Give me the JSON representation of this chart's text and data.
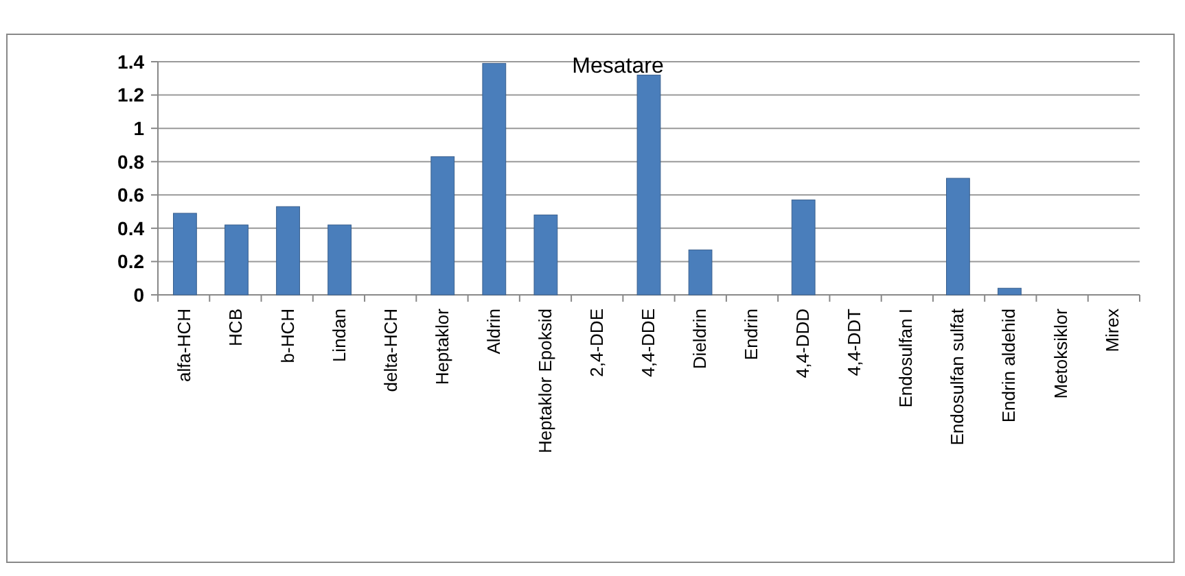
{
  "chart_data": {
    "type": "bar",
    "title": "Mesatare",
    "categories": [
      "alfa-HCH",
      "HCB",
      "b-HCH",
      "Lindan",
      "delta-HCH",
      "Heptaklor",
      "Aldrin",
      "Heptaklor Epoksid",
      "2,4-DDE",
      "4,4-DDE",
      "Dieldrin",
      "Endrin",
      "4,4-DDD",
      "4,4-DDT",
      "Endosulfan I",
      "Endosulfan sulfat",
      "Endrin aldehid",
      "Metoksiklor",
      "Mirex"
    ],
    "values": [
      0.49,
      0.42,
      0.53,
      0.42,
      0,
      0.83,
      1.39,
      0.48,
      0,
      1.32,
      0.27,
      0,
      0.57,
      0,
      0,
      0.7,
      0.04,
      0,
      0
    ],
    "color": "#4a7ebb",
    "ylim": [
      0,
      1.4
    ],
    "yticks": [
      0,
      0.2,
      0.4,
      0.6,
      0.8,
      1,
      1.2,
      1.4
    ],
    "grid": "y"
  }
}
